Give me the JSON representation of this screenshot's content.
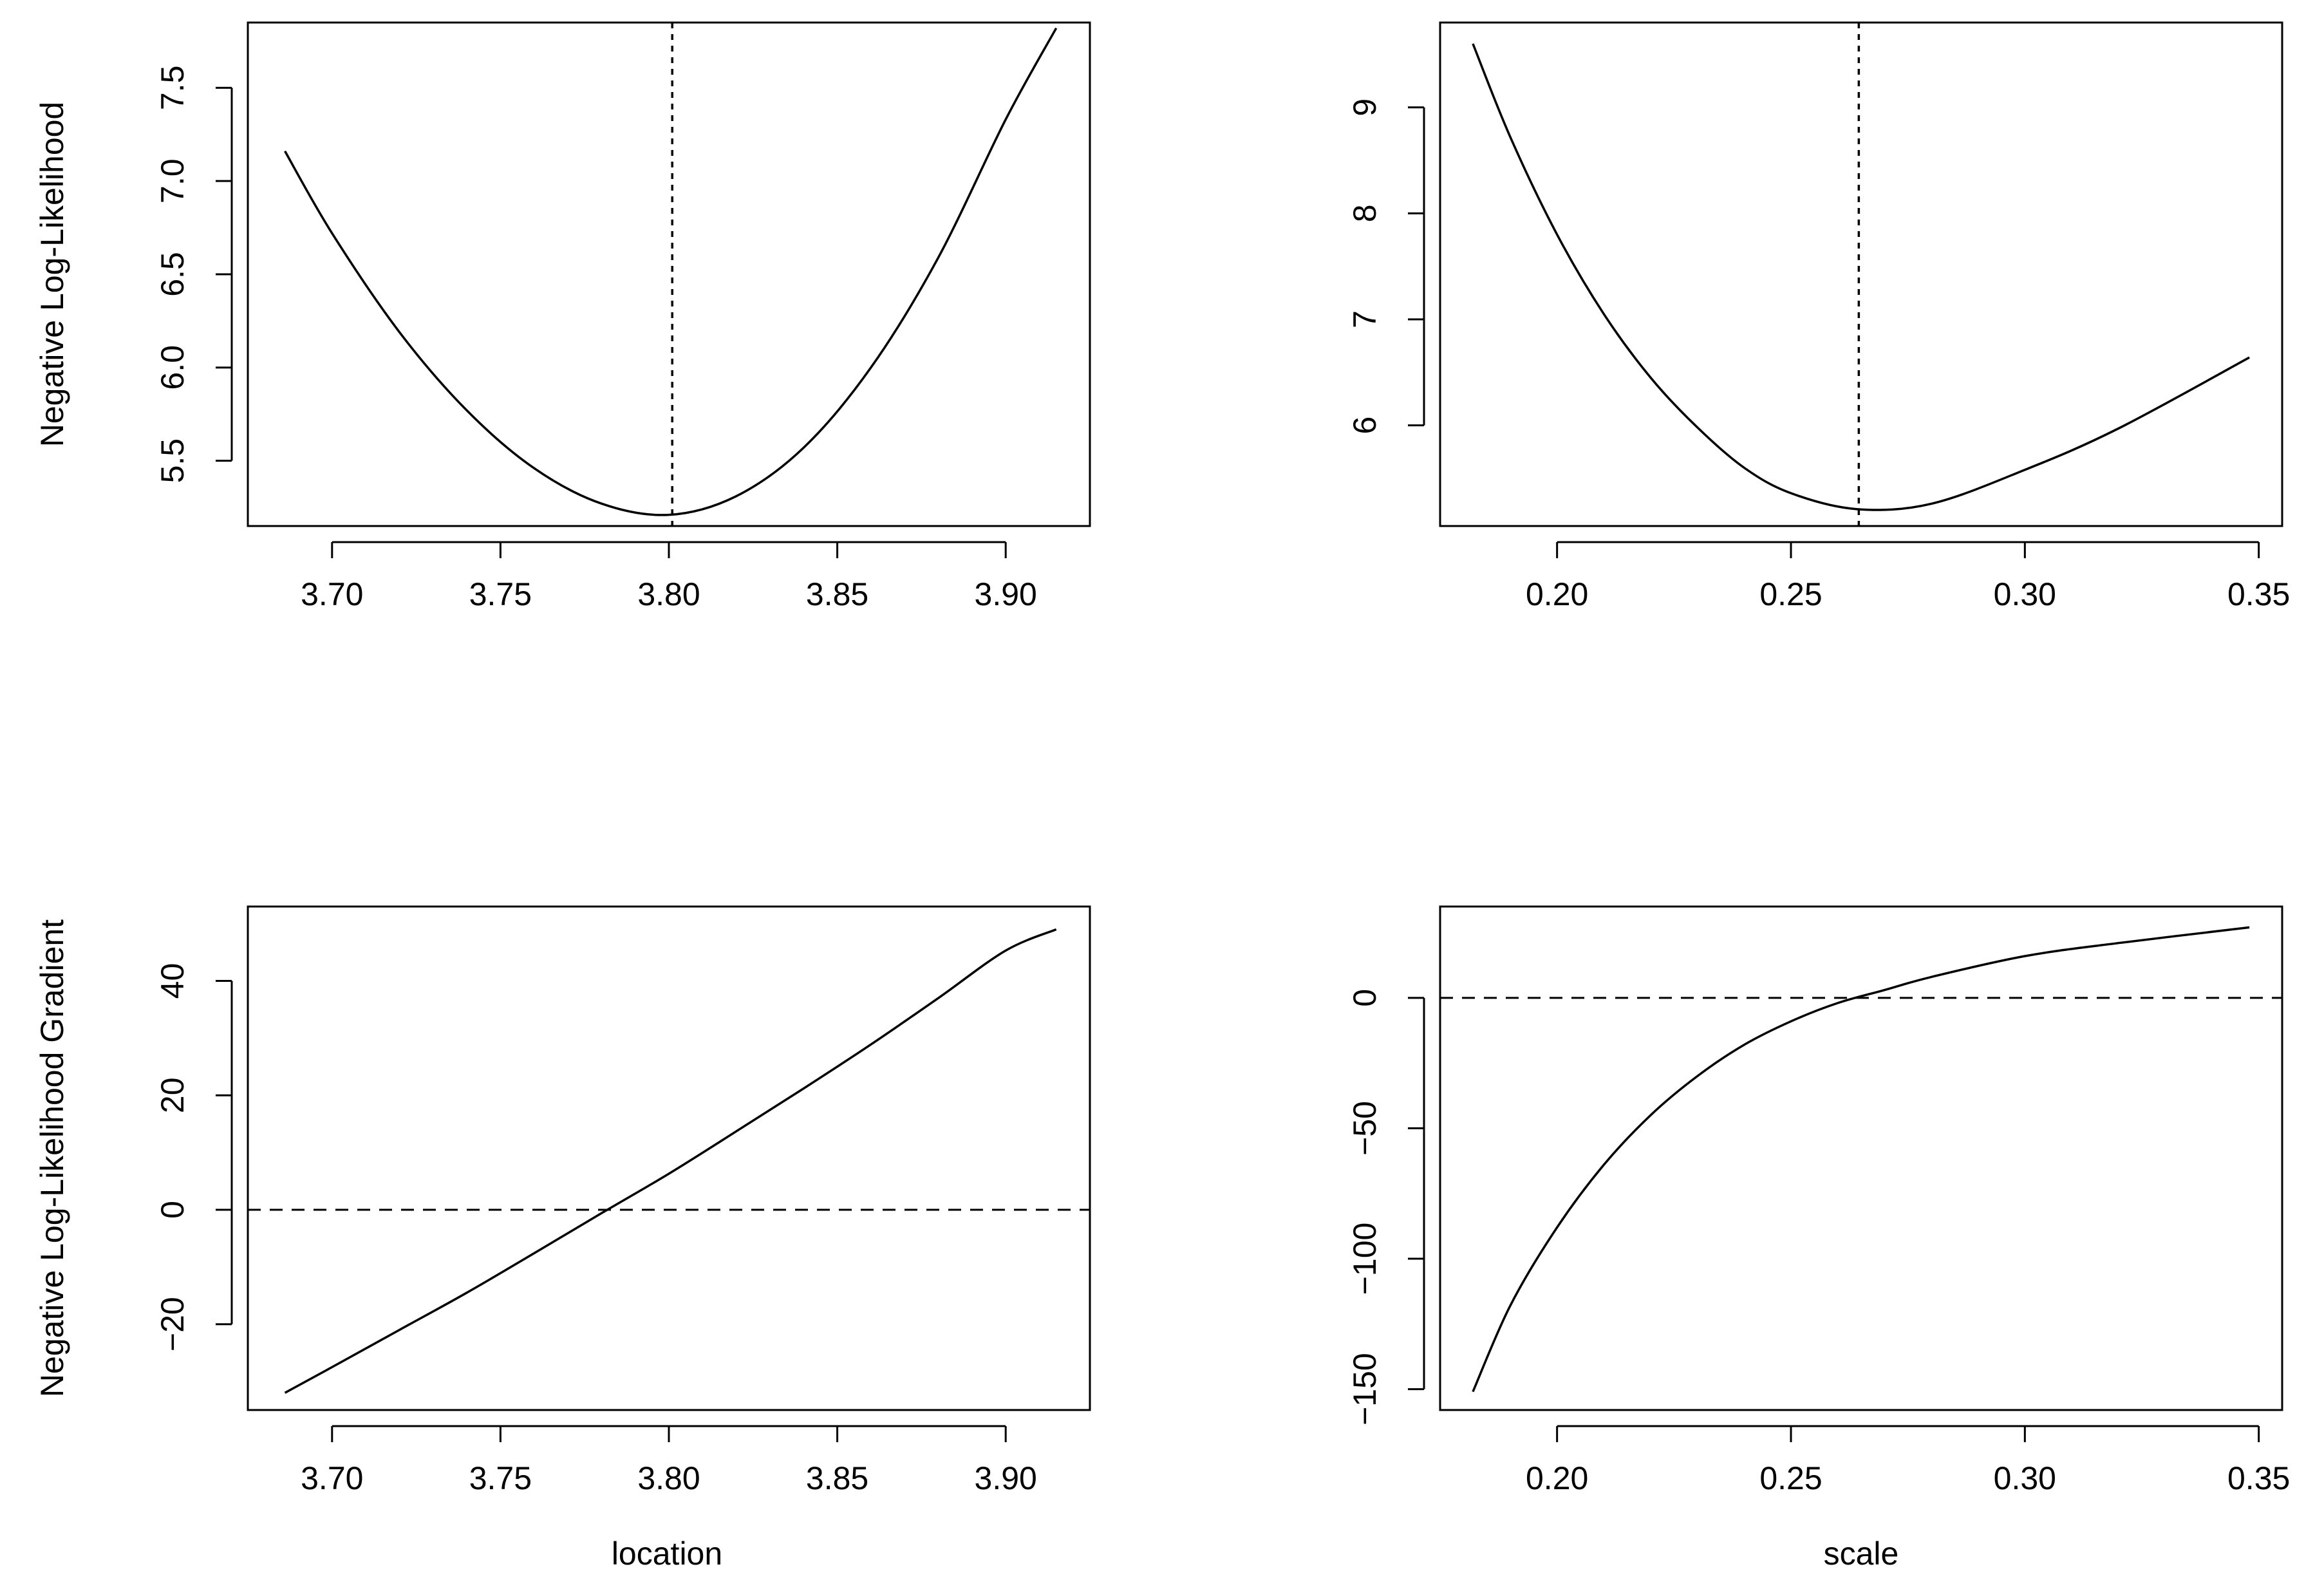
{
  "figure": {
    "xlabels": [
      "location",
      "scale"
    ],
    "ylabels": [
      "Negative Log-Likelihood",
      "Negative Log-Likelihood Gradient"
    ]
  },
  "chart_data": [
    {
      "type": "line",
      "panel": "top-left",
      "xlabel": "",
      "ylabel": "Negative Log-Likelihood",
      "xlim": [
        3.675,
        3.925
      ],
      "ylim": [
        5.15,
        7.85
      ],
      "xticks": [
        3.7,
        3.75,
        3.8,
        3.85,
        3.9
      ],
      "xtick_labels": [
        "3.70",
        "3.75",
        "3.80",
        "3.85",
        "3.90"
      ],
      "yticks": [
        5.5,
        6.0,
        6.5,
        7.0,
        7.5
      ],
      "ytick_labels": [
        "5.5",
        "6.0",
        "6.5",
        "7.0",
        "7.5"
      ],
      "series": [
        {
          "style": "solid",
          "x": [
            3.686,
            3.7,
            3.72,
            3.74,
            3.76,
            3.78,
            3.8,
            3.82,
            3.84,
            3.86,
            3.88,
            3.9,
            3.915
          ],
          "y": [
            7.16,
            6.72,
            6.19,
            5.77,
            5.46,
            5.27,
            5.21,
            5.31,
            5.57,
            6.0,
            6.59,
            7.33,
            7.82
          ]
        }
      ],
      "reference_lines": [
        {
          "orientation": "vertical",
          "value": 3.801,
          "style": "dotted"
        }
      ],
      "grid": false
    },
    {
      "type": "line",
      "panel": "top-right",
      "xlabel": "",
      "ylabel": "",
      "xlim": [
        0.175,
        0.355
      ],
      "ylim": [
        5.05,
        9.8
      ],
      "xticks": [
        0.2,
        0.25,
        0.3,
        0.35
      ],
      "xtick_labels": [
        "0.20",
        "0.25",
        "0.30",
        "0.35"
      ],
      "yticks": [
        6,
        7,
        8,
        9
      ],
      "ytick_labels": [
        "6",
        "7",
        "8",
        "9"
      ],
      "series": [
        {
          "style": "solid",
          "x": [
            0.182,
            0.19,
            0.2,
            0.21,
            0.22,
            0.23,
            0.24,
            0.25,
            0.264,
            0.28,
            0.3,
            0.32,
            0.348
          ],
          "y": [
            9.6,
            8.72,
            7.8,
            7.05,
            6.45,
            5.98,
            5.6,
            5.36,
            5.21,
            5.26,
            5.58,
            5.97,
            6.64
          ]
        }
      ],
      "reference_lines": [
        {
          "orientation": "vertical",
          "value": 0.2645,
          "style": "dotted"
        }
      ],
      "grid": false
    },
    {
      "type": "line",
      "panel": "bottom-left",
      "xlabel": "location",
      "ylabel": "Negative Log-Likelihood Gradient",
      "xlim": [
        3.675,
        3.925
      ],
      "ylim": [
        -35,
        53
      ],
      "xticks": [
        3.7,
        3.75,
        3.8,
        3.85,
        3.9
      ],
      "xtick_labels": [
        "3.70",
        "3.75",
        "3.80",
        "3.85",
        "3.90"
      ],
      "yticks": [
        -20,
        0,
        20,
        40
      ],
      "ytick_labels": [
        "−20",
        "0",
        "20",
        "40"
      ],
      "series": [
        {
          "style": "solid",
          "x": [
            3.686,
            3.7,
            3.72,
            3.74,
            3.76,
            3.78,
            3.8,
            3.82,
            3.84,
            3.86,
            3.88,
            3.9,
            3.915
          ],
          "y": [
            -32,
            -27.5,
            -21,
            -14.5,
            -7.6,
            -0.6,
            6.3,
            13.7,
            21.2,
            28.9,
            37.0,
            45.3,
            49.0
          ]
        }
      ],
      "reference_lines": [
        {
          "orientation": "horizontal",
          "value": 0,
          "style": "dashed"
        }
      ],
      "grid": false
    },
    {
      "type": "line",
      "panel": "bottom-right",
      "xlabel": "scale",
      "ylabel": "",
      "xlim": [
        0.175,
        0.355
      ],
      "ylim": [
        -158,
        35
      ],
      "xticks": [
        0.2,
        0.25,
        0.3,
        0.35
      ],
      "xtick_labels": [
        "0.20",
        "0.25",
        "0.30",
        "0.35"
      ],
      "yticks": [
        -150,
        -100,
        -50,
        0
      ],
      "ytick_labels": [
        "−150",
        "−100",
        "−50",
        "0"
      ],
      "series": [
        {
          "style": "solid",
          "x": [
            0.182,
            0.19,
            0.2,
            0.21,
            0.22,
            0.23,
            0.24,
            0.25,
            0.26,
            0.27,
            0.28,
            0.3,
            0.32,
            0.348
          ],
          "y": [
            -151,
            -118,
            -88,
            -64,
            -45,
            -30,
            -18,
            -9,
            -2,
            3,
            8,
            16,
            21,
            27
          ]
        }
      ],
      "reference_lines": [
        {
          "orientation": "horizontal",
          "value": 0,
          "style": "dashed"
        }
      ],
      "grid": false
    }
  ]
}
